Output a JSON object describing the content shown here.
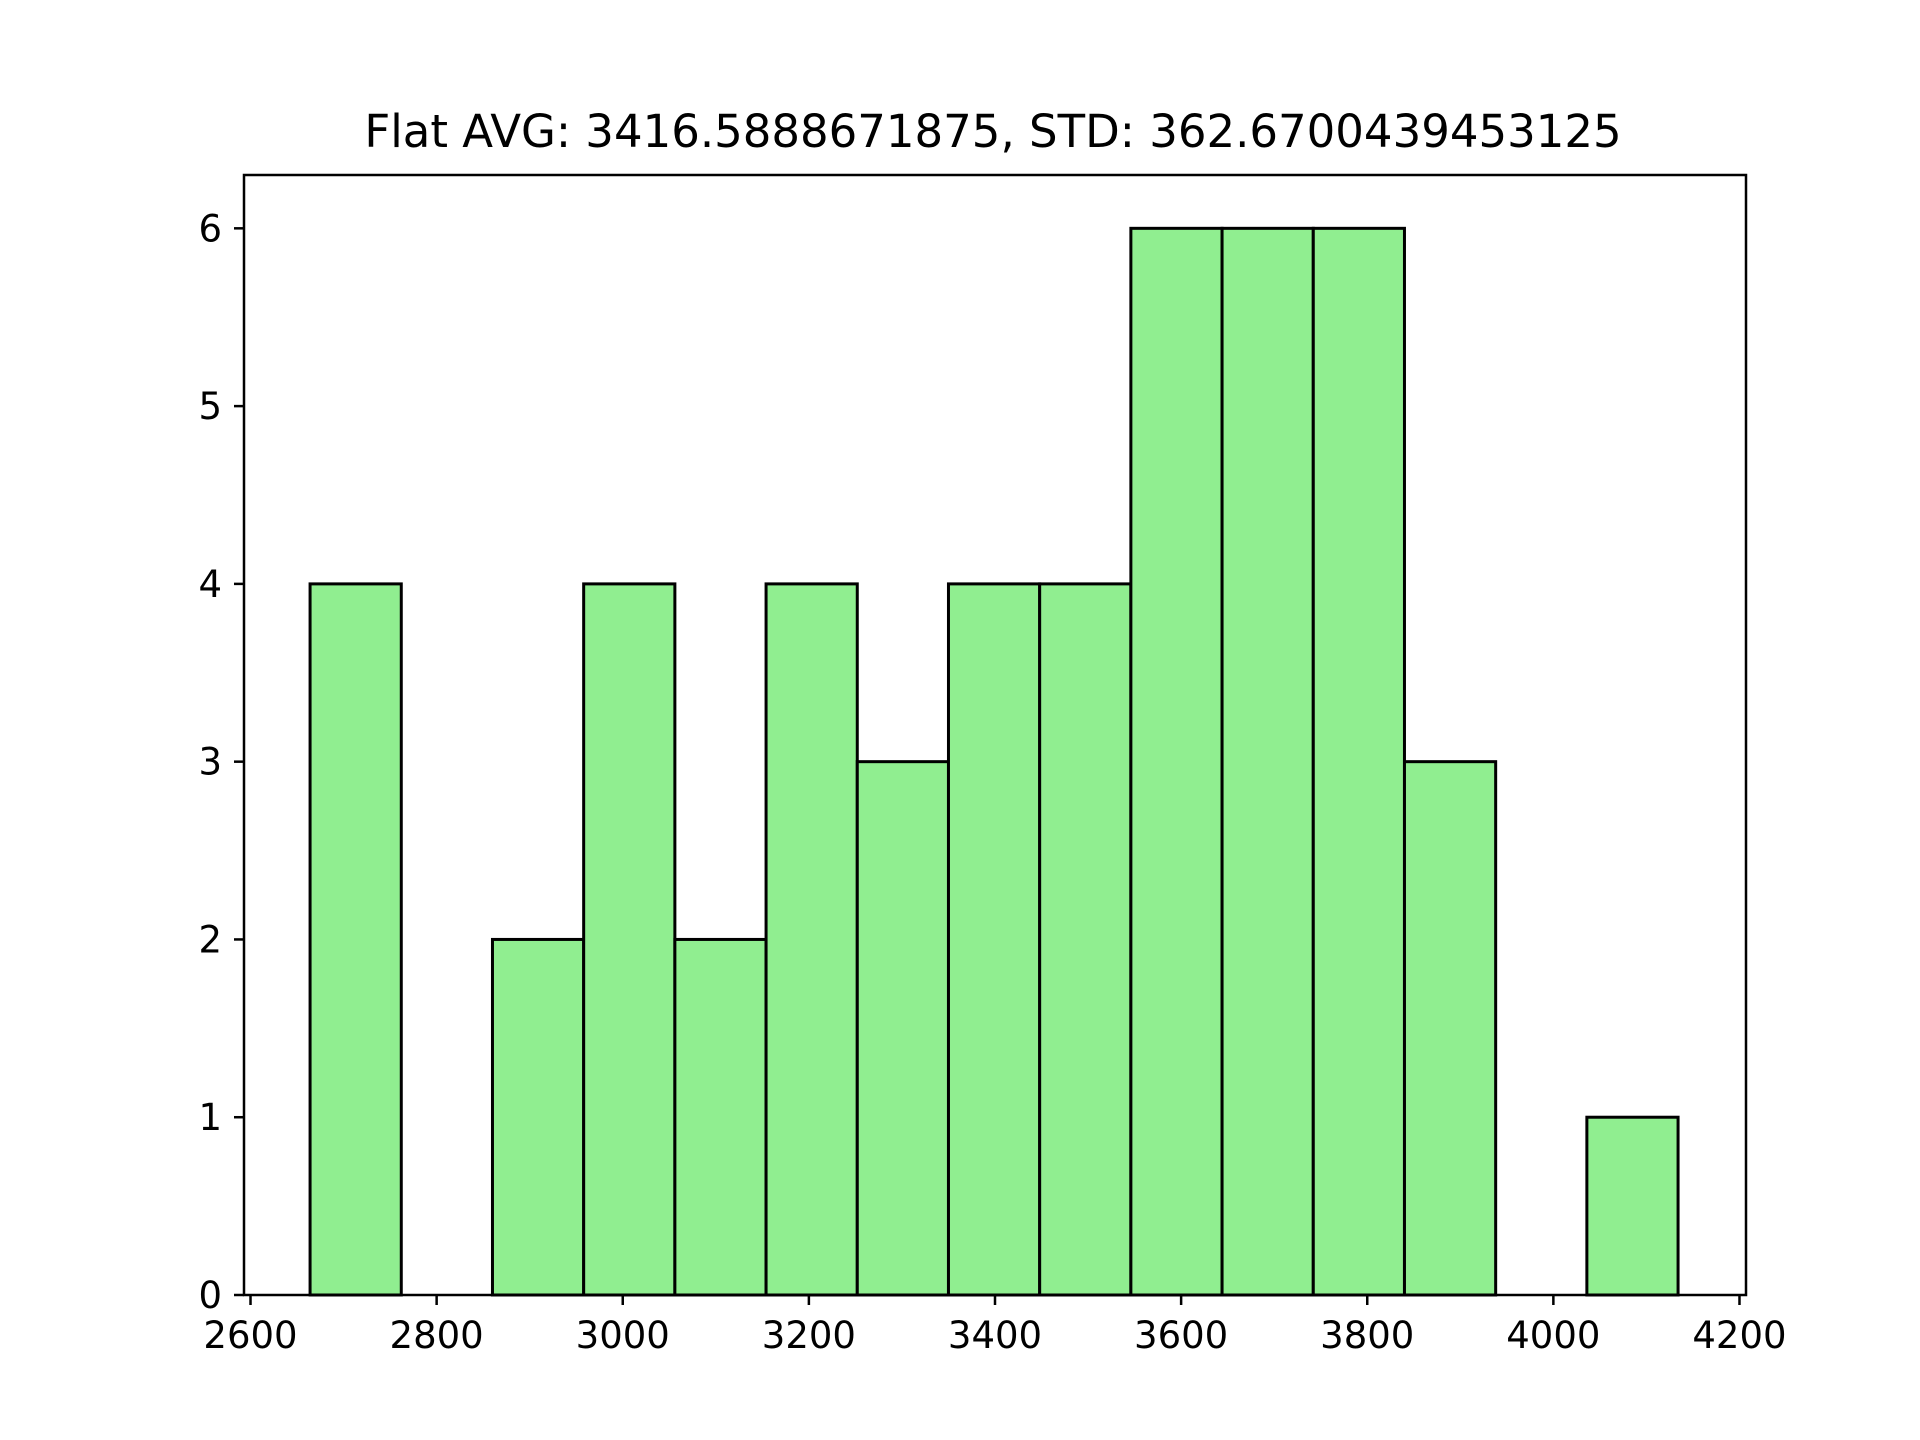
{
  "chart_data": {
    "type": "bar",
    "title": "Flat AVG: 3416.5888671875, STD: 362.6700439453125",
    "xlabel": "",
    "ylabel": "",
    "xlim": [
      2593,
      4207
    ],
    "ylim": [
      0,
      6.3
    ],
    "x_ticks": [
      2600,
      2800,
      3000,
      3200,
      3400,
      3600,
      3800,
      4000,
      4200
    ],
    "y_ticks": [
      0,
      1,
      2,
      3,
      4,
      5,
      6
    ],
    "bin_edges": [
      2664,
      2762,
      2860,
      2958,
      3056,
      3154,
      3252,
      3350,
      3448,
      3546,
      3644,
      3742,
      3840,
      3938,
      4036,
      4134
    ],
    "values": [
      4,
      0,
      2,
      4,
      2,
      4,
      3,
      4,
      4,
      6,
      6,
      6,
      3,
      0,
      1
    ],
    "bar_color": "#90ee90",
    "edge_color": "#000000",
    "grid": false
  }
}
